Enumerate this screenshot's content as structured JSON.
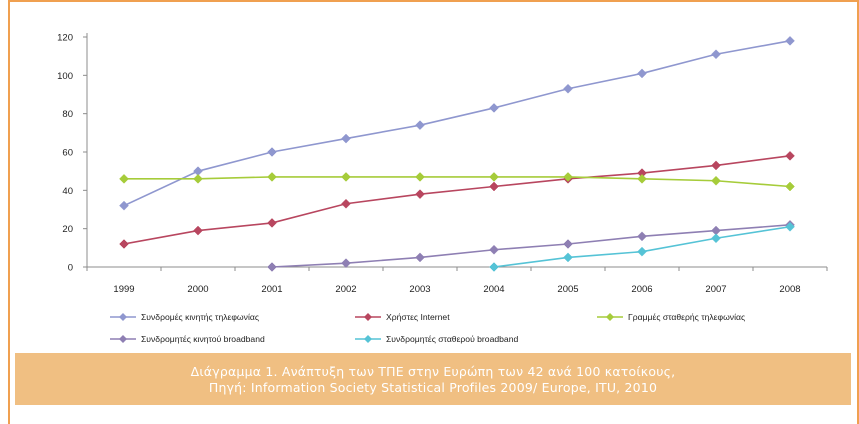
{
  "chart_data": {
    "type": "line",
    "categories": [
      "1999",
      "2000",
      "2001",
      "2002",
      "2003",
      "2004",
      "2005",
      "2006",
      "2007",
      "2008"
    ],
    "ylim": [
      0,
      120
    ],
    "yticks": [
      "0",
      "20",
      "40",
      "60",
      "80",
      "100",
      "120"
    ],
    "grid": false,
    "legend_position": "bottom",
    "series": [
      {
        "name": "Συνδρομές κινητής τηλεφωνίας",
        "color": "#8f97cf",
        "marker": "diamond",
        "values": [
          32,
          50,
          60,
          67,
          74,
          83,
          93,
          101,
          111,
          118
        ]
      },
      {
        "name": "Χρήστες Internet",
        "color": "#b8465f",
        "marker": "diamond",
        "values": [
          12,
          19,
          23,
          33,
          38,
          42,
          46,
          49,
          53,
          58
        ]
      },
      {
        "name": "Γραμμές σταθερής τηλεφωνίας",
        "color": "#a6cc3a",
        "marker": "diamond",
        "values": [
          46,
          46,
          47,
          47,
          47,
          47,
          47,
          46,
          45,
          42
        ]
      },
      {
        "name": "Συνδρομητές κινητού broadband",
        "color": "#8e7fb3",
        "marker": "diamond",
        "values": [
          null,
          null,
          0,
          2,
          5,
          9,
          12,
          16,
          19,
          22
        ]
      },
      {
        "name": "Συνδρομητές σταθερού broadband",
        "color": "#55c3d6",
        "marker": "diamond",
        "values": [
          null,
          null,
          null,
          null,
          null,
          0,
          5,
          8,
          15,
          21
        ]
      }
    ]
  },
  "caption": {
    "line1": "Διάγραμμα 1. Ανάπτυξη των ΤΠΕ στην Ευρώπη των 42 ανά 100 κατοίκους,",
    "line2": "Πηγή: Information Society Statistical Profiles 2009/ Europe, ITU, 2010"
  },
  "frame_color": "#f0a050"
}
